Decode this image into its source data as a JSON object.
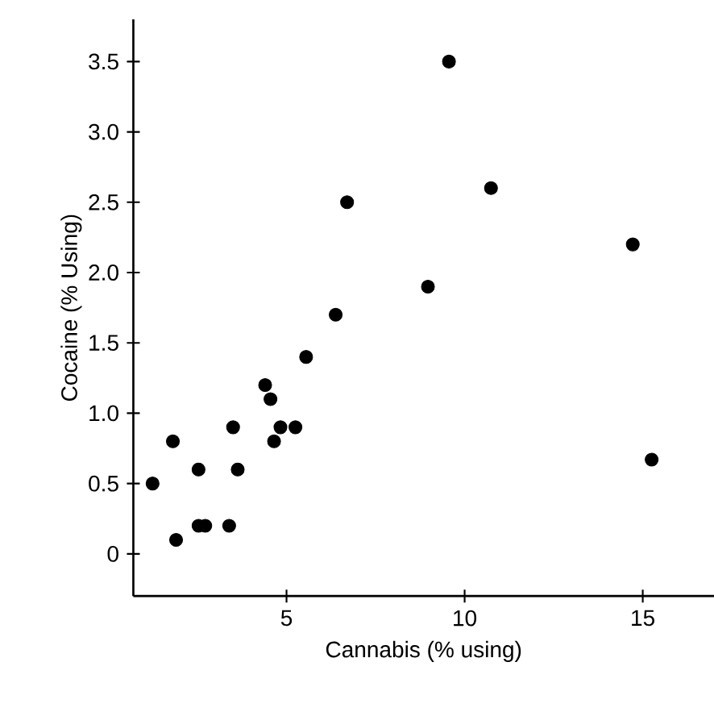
{
  "chart_data": {
    "type": "scatter",
    "xlabel": "Cannabis (% using)",
    "ylabel": "Cocaine (% Using)",
    "x": [
      1.24,
      1.81,
      1.9,
      2.53,
      2.53,
      2.72,
      3.39,
      3.5,
      3.63,
      4.4,
      4.55,
      4.65,
      4.83,
      5.25,
      5.55,
      6.38,
      6.7,
      8.97,
      9.56,
      10.74,
      14.72,
      15.25
    ],
    "values": [
      0.5,
      0.8,
      0.1,
      0.6,
      0.2,
      0.2,
      0.2,
      0.9,
      0.6,
      1.2,
      1.1,
      0.8,
      0.9,
      0.9,
      1.4,
      1.7,
      2.5,
      1.9,
      3.5,
      2.6,
      2.2,
      0.67
    ],
    "color": "#000000",
    "marker": "circle",
    "grid": false,
    "xlim": [
      0.7,
      17
    ],
    "ylim": [
      -0.3,
      3.8
    ],
    "xticks": [
      5,
      10,
      15
    ],
    "yticks": [
      0,
      0.5,
      {
        "value": 1.0,
        "label": "1.0"
      },
      1.5,
      {
        "value": 2.0,
        "label": "2.0"
      },
      2.5,
      {
        "value": 3.0,
        "label": "3.0"
      },
      3.5
    ]
  }
}
